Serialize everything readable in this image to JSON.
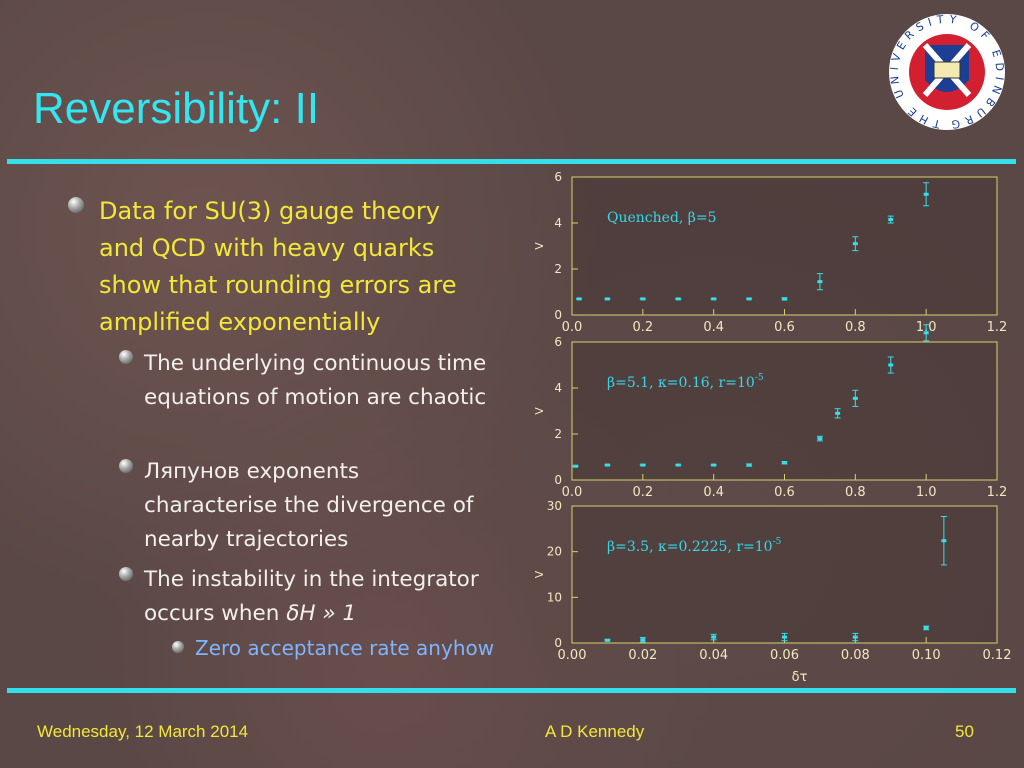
{
  "slide": {
    "title": "Reversibility: II",
    "logo_text": "THE UNIVERSITY OF EDINBURGH",
    "bullets": [
      {
        "text": "Data for SU(3) gauge theory and QCD with heavy quarks show that rounding errors are amplified exponentially",
        "children": [
          {
            "text": "The underlying continuous time equations of motion are chaotic"
          },
          {
            "text": "Ляпунов exponents characterise the divergence of nearby trajectories"
          },
          {
            "text": "The instability in the integrator occurs when ",
            "emphasis": "δH » 1",
            "children": [
              {
                "text": "Zero acceptance rate anyhow"
              }
            ]
          }
        ]
      }
    ],
    "footer": {
      "date": "Wednesday, 12 March 2014",
      "author": "A D Kennedy",
      "page": "50"
    }
  },
  "chart_data": [
    {
      "type": "scatter",
      "annotation": "Quenched, β=5",
      "ylabel": "V",
      "color": "#35e0ea",
      "x": [
        0.02,
        0.1,
        0.2,
        0.3,
        0.4,
        0.5,
        0.6,
        0.7,
        0.8,
        0.9,
        1.0
      ],
      "values": [
        0.7,
        0.7,
        0.7,
        0.7,
        0.7,
        0.7,
        0.7,
        1.45,
        3.1,
        4.15,
        5.25
      ],
      "errors": [
        0,
        0,
        0,
        0,
        0,
        0,
        0.05,
        0.35,
        0.3,
        0.15,
        0.5
      ],
      "xlim": [
        0,
        1.2
      ],
      "ylim": [
        0,
        6
      ],
      "xticks": [
        {
          "value": 0,
          "label": "0.0"
        },
        0.2,
        0.4,
        0.6,
        0.8,
        {
          "value": 1,
          "label": "1.0"
        },
        1.2
      ],
      "yticks": [
        0,
        2,
        4,
        6
      ]
    },
    {
      "type": "scatter",
      "annotation": {
        "text": "β=5.1, κ=0.16, r=10",
        "superscript": "-5"
      },
      "ylabel": "V",
      "color": "#35e0ea",
      "x": [
        0.01,
        0.1,
        0.2,
        0.3,
        0.4,
        0.5,
        0.6,
        0.7,
        0.75,
        0.8,
        0.9,
        1.0
      ],
      "values": [
        0.6,
        0.65,
        0.65,
        0.65,
        0.65,
        0.65,
        0.75,
        1.8,
        2.9,
        3.55,
        5.0,
        6.4
      ],
      "errors": [
        0,
        0,
        0,
        0,
        0,
        0.05,
        0.05,
        0.1,
        0.2,
        0.35,
        0.35,
        0.35
      ],
      "xlim": [
        0,
        1.2
      ],
      "ylim": [
        0,
        6
      ],
      "xticks": [
        {
          "value": 0,
          "label": "0.0"
        },
        0.2,
        0.4,
        0.6,
        0.8,
        {
          "value": 1,
          "label": "1.0"
        },
        1.2
      ],
      "yticks": [
        0,
        2,
        4,
        6
      ]
    },
    {
      "type": "scatter",
      "annotation": {
        "text": "β=3.5, κ=0.2225, r=10",
        "superscript": "-5"
      },
      "ylabel": "V",
      "xlabel": "δτ",
      "color": "#35e0ea",
      "x": [
        0.01,
        0.02,
        0.04,
        0.06,
        0.08,
        0.1,
        0.105
      ],
      "values": [
        0.6,
        0.7,
        1.3,
        1.3,
        1.3,
        3.3,
        22.4
      ],
      "errors": [
        0.2,
        0.5,
        0.6,
        0.8,
        0.8,
        0.4,
        5.3
      ],
      "xlim": [
        0,
        0.12
      ],
      "ylim": [
        0,
        30
      ],
      "xticks": [
        {
          "value": 0,
          "label": "0.00"
        },
        0.02,
        0.04,
        0.06,
        0.08,
        {
          "value": 0.1,
          "label": "0.10"
        },
        0.12
      ],
      "yticks": [
        0,
        10,
        20,
        30
      ]
    }
  ]
}
